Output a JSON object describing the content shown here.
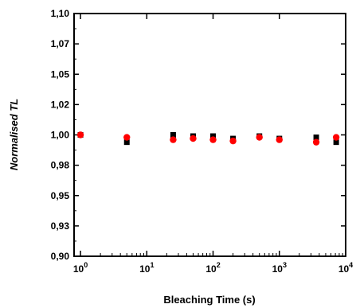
{
  "chart_data": {
    "type": "scatter",
    "xlabel": "Bleaching Time (s)",
    "ylabel": "Normalised TL",
    "xscale": "log",
    "xlim": [
      0.8,
      10000
    ],
    "ylim": [
      0.9,
      1.1
    ],
    "x_ticks": [
      {
        "value": 1,
        "base": "10",
        "exp": "0"
      },
      {
        "value": 10,
        "base": "10",
        "exp": "1"
      },
      {
        "value": 100,
        "base": "10",
        "exp": "2"
      },
      {
        "value": 1000,
        "base": "10",
        "exp": "3"
      },
      {
        "value": 10000,
        "base": "10",
        "exp": "4"
      }
    ],
    "y_ticks": [
      {
        "value": 0.9,
        "label": "0,90"
      },
      {
        "value": 0.925,
        "label": "0,93"
      },
      {
        "value": 0.95,
        "label": "0,95"
      },
      {
        "value": 0.975,
        "label": "0,98"
      },
      {
        "value": 1.0,
        "label": "1,00"
      },
      {
        "value": 1.025,
        "label": "1,02"
      },
      {
        "value": 1.05,
        "label": "1,05"
      },
      {
        "value": 1.075,
        "label": "1,07"
      },
      {
        "value": 1.1,
        "label": "1,10"
      }
    ],
    "series": [
      {
        "marker": "square",
        "color": "#000000",
        "x": [
          1,
          5,
          25,
          50,
          100,
          200,
          500,
          1000,
          3600,
          7200
        ],
        "y": [
          1.0,
          0.994,
          1.0,
          0.999,
          0.999,
          0.997,
          0.999,
          0.997,
          0.998,
          0.994
        ]
      },
      {
        "marker": "circle",
        "color": "#ff0000",
        "x": [
          1,
          5,
          25,
          50,
          100,
          200,
          500,
          1000,
          3600,
          7200
        ],
        "y": [
          1.0,
          0.998,
          0.996,
          0.997,
          0.996,
          0.995,
          0.998,
          0.996,
          0.994,
          0.998
        ]
      }
    ]
  }
}
